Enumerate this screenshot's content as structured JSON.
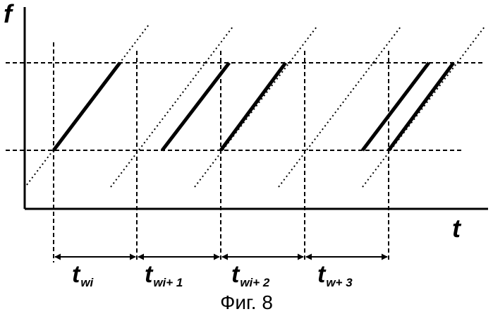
{
  "axes": {
    "y_label": "f",
    "x_label": "t"
  },
  "intervals": [
    {
      "main": "t",
      "sub": "wi"
    },
    {
      "main": "t",
      "sub": "wi+ 1"
    },
    {
      "main": "t",
      "sub": "wi+ 2"
    },
    {
      "main": "t",
      "sub": "w+ 3"
    }
  ],
  "caption": "Фиг. 8",
  "colors": {
    "ink": "#000000",
    "background": "#ffffff"
  }
}
